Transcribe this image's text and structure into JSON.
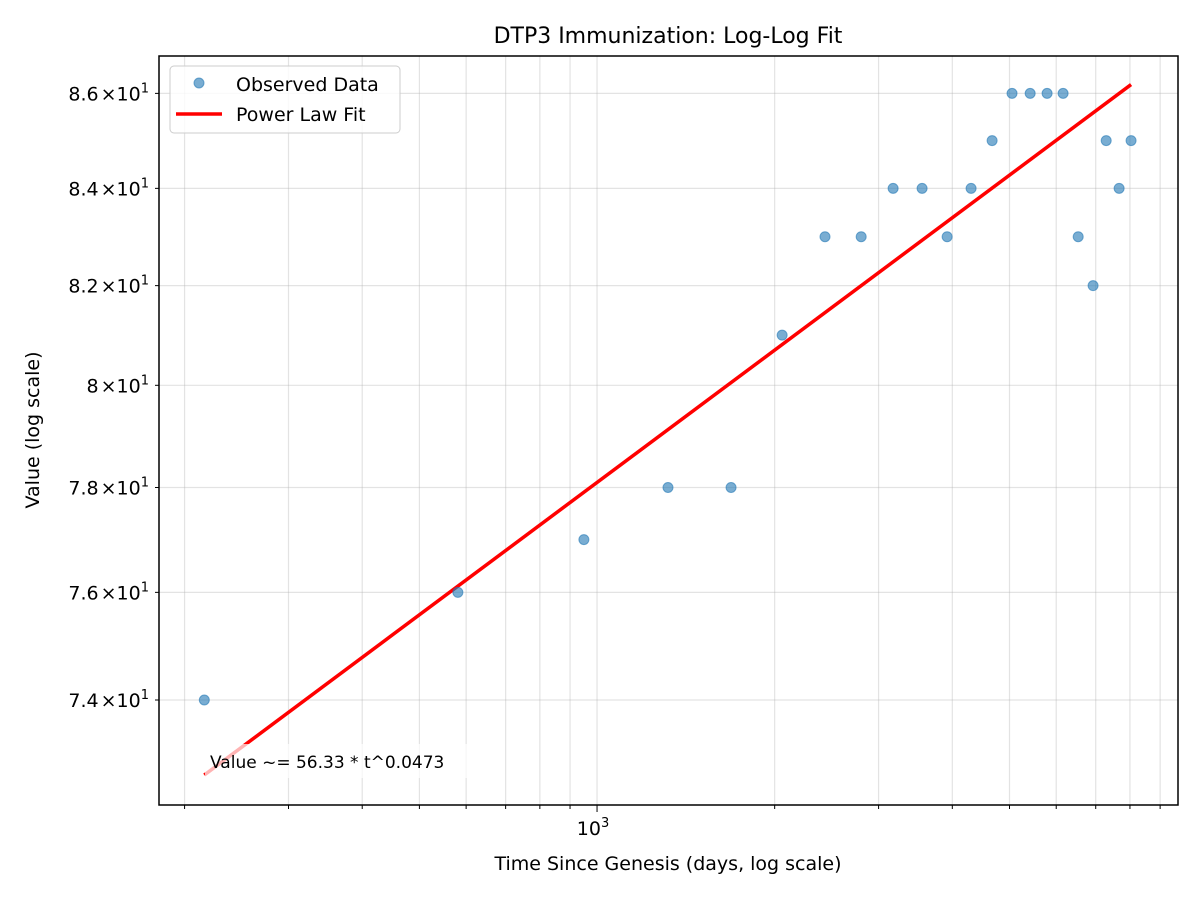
{
  "chart_data": {
    "type": "scatter",
    "title": "DTP3 Immunization: Log-Log Fit",
    "xlabel": "Time Since Genesis (days, log scale)",
    "ylabel": "Value (log scale)",
    "xscale": "log",
    "yscale": "log",
    "xlim": [
      181,
      9650
    ],
    "ylim": [
      72.1,
      86.8
    ],
    "grid": true,
    "legend_position": "top-left",
    "x_tick_labels": [
      {
        "value": 1000,
        "mantissa": "10",
        "exp": "3"
      }
    ],
    "y_tick_labels": [
      {
        "value": 74,
        "label": "7.4",
        "base": "10",
        "exp": "1"
      },
      {
        "value": 76,
        "label": "7.6",
        "base": "10",
        "exp": "1"
      },
      {
        "value": 78,
        "label": "7.8",
        "base": "10",
        "exp": "1"
      },
      {
        "value": 80,
        "label": "8",
        "base": "10",
        "exp": "1"
      },
      {
        "value": 82,
        "label": "8.2",
        "base": "10",
        "exp": "1"
      },
      {
        "value": 84,
        "label": "8.4",
        "base": "10",
        "exp": "1"
      },
      {
        "value": 86,
        "label": "8.6",
        "base": "10",
        "exp": "1"
      }
    ],
    "series": [
      {
        "name": "Observed Data",
        "kind": "points",
        "color": "#1f77b4",
        "x": [
          216,
          581,
          950,
          1319,
          1687,
          2059,
          2434,
          2803,
          3175,
          3555,
          3920,
          4304,
          4672,
          5050,
          5420,
          5790,
          6163,
          6537,
          6928,
          7292,
          7669,
          8035
        ],
        "y": [
          74,
          76,
          77,
          78,
          78,
          81,
          83,
          83,
          84,
          84,
          83,
          84,
          85,
          86,
          86,
          86,
          86,
          83,
          82,
          85,
          84,
          85
        ]
      },
      {
        "name": "Power Law Fit",
        "kind": "line",
        "color": "#ff0000",
        "coefficient": 56.33,
        "exponent": 0.0473
      }
    ],
    "annotation": "Value ~= 56.33 * t^0.0473"
  }
}
